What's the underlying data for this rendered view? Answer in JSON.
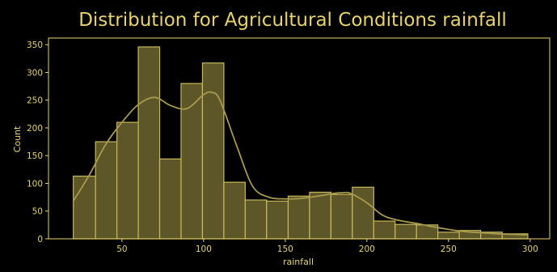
{
  "chart_data": {
    "type": "bar",
    "title": "Distribution for Agricultural Conditions rainfall",
    "xlabel": "rainfall",
    "ylabel": "Count",
    "xlim": [
      5,
      312
    ],
    "ylim": [
      0,
      362
    ],
    "xticks": [
      50,
      100,
      150,
      200,
      250,
      300
    ],
    "yticks": [
      0,
      50,
      100,
      150,
      200,
      250,
      300,
      350
    ],
    "bins": [
      {
        "x0": 20.2,
        "x1": 33.8,
        "count": 113
      },
      {
        "x0": 33.8,
        "x1": 46.9,
        "count": 175
      },
      {
        "x0": 46.9,
        "x1": 60.0,
        "count": 210
      },
      {
        "x0": 60.0,
        "x1": 73.1,
        "count": 346
      },
      {
        "x0": 73.1,
        "x1": 86.2,
        "count": 144
      },
      {
        "x0": 86.2,
        "x1": 99.3,
        "count": 280
      },
      {
        "x0": 99.3,
        "x1": 112.4,
        "count": 317
      },
      {
        "x0": 112.4,
        "x1": 125.5,
        "count": 102
      },
      {
        "x0": 125.5,
        "x1": 138.6,
        "count": 70
      },
      {
        "x0": 138.6,
        "x1": 151.8,
        "count": 68
      },
      {
        "x0": 151.8,
        "x1": 164.9,
        "count": 77
      },
      {
        "x0": 164.9,
        "x1": 178.0,
        "count": 84
      },
      {
        "x0": 178.0,
        "x1": 191.1,
        "count": 80
      },
      {
        "x0": 191.1,
        "x1": 204.2,
        "count": 93
      },
      {
        "x0": 204.2,
        "x1": 217.3,
        "count": 32
      },
      {
        "x0": 217.3,
        "x1": 230.4,
        "count": 26
      },
      {
        "x0": 230.4,
        "x1": 243.5,
        "count": 25
      },
      {
        "x0": 243.5,
        "x1": 256.6,
        "count": 12
      },
      {
        "x0": 256.6,
        "x1": 269.7,
        "count": 15
      },
      {
        "x0": 269.7,
        "x1": 282.9,
        "count": 12
      },
      {
        "x0": 282.9,
        "x1": 298.6,
        "count": 9
      }
    ],
    "kde": {
      "x": [
        20,
        30,
        40,
        50,
        60,
        70,
        80,
        90,
        100,
        105,
        110,
        120,
        130,
        140,
        150,
        160,
        170,
        180,
        185,
        190,
        200,
        210,
        220,
        230,
        240,
        250,
        260,
        270,
        280,
        290,
        298
      ],
      "y": [
        67,
        115,
        170,
        210,
        242,
        255,
        240,
        235,
        260,
        264,
        250,
        170,
        95,
        75,
        72,
        73,
        77,
        82,
        83,
        82,
        65,
        42,
        33,
        28,
        22,
        17,
        13,
        11,
        9,
        8,
        7
      ]
    },
    "grid": false,
    "legend": "none",
    "colors": {
      "background": "#000000",
      "foreground": "#e8d36a",
      "bar_fill": "#5c5628",
      "bar_edge": "#c9b95a",
      "kde_line": "#a89a4c"
    }
  }
}
